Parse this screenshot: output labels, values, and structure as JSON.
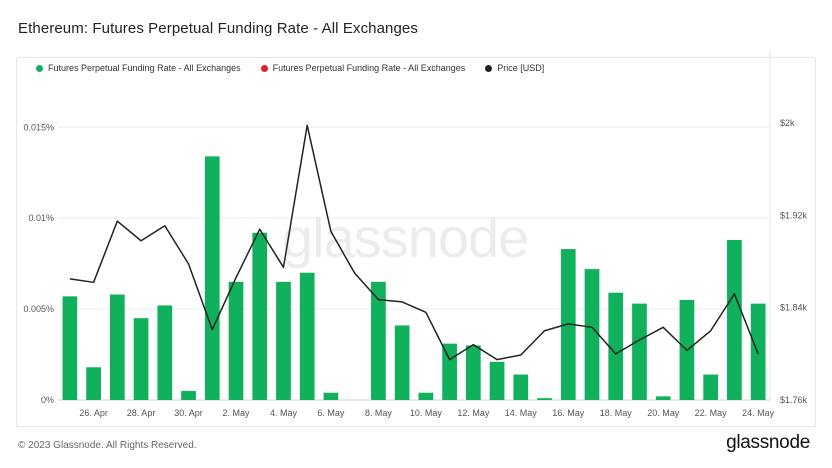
{
  "title": "Ethereum: Futures Perpetual Funding Rate - All Exchanges",
  "footer": {
    "copyright": "© 2023 Glassnode. All Rights Reserved.",
    "brand": "glassnode"
  },
  "watermark": "glassnode",
  "colors": {
    "bar_positive": "#10b05c",
    "bar_negative": "#e11d2b",
    "price_line": "#222222"
  },
  "chart_data": {
    "type": "bar",
    "legend": [
      {
        "label": "Futures Perpetual Funding Rate - All Exchanges",
        "color": "#10b05c"
      },
      {
        "label": "Futures Perpetual Funding Rate - All Exchanges",
        "color": "#e11d2b"
      },
      {
        "label": "Price [USD]",
        "color": "#222222"
      }
    ],
    "legend_position": "top-left",
    "grid": true,
    "x": [
      "2023-04-25",
      "2023-04-26",
      "2023-04-27",
      "2023-04-28",
      "2023-04-29",
      "2023-04-30",
      "2023-05-01",
      "2023-05-02",
      "2023-05-03",
      "2023-05-04",
      "2023-05-05",
      "2023-05-06",
      "2023-05-07",
      "2023-05-08",
      "2023-05-09",
      "2023-05-10",
      "2023-05-11",
      "2023-05-12",
      "2023-05-13",
      "2023-05-14",
      "2023-05-15",
      "2023-05-16",
      "2023-05-17",
      "2023-05-18",
      "2023-05-19",
      "2023-05-20",
      "2023-05-21",
      "2023-05-22",
      "2023-05-23",
      "2023-05-24"
    ],
    "x_tick_labels": [
      "26. Apr",
      "28. Apr",
      "30. Apr",
      "2. May",
      "4. May",
      "6. May",
      "8. May",
      "10. May",
      "12. May",
      "14. May",
      "16. May",
      "18. May",
      "20. May",
      "22. May",
      "24. May"
    ],
    "x_tick_index": [
      1,
      3,
      5,
      7,
      9,
      11,
      13,
      15,
      17,
      19,
      21,
      23,
      25,
      27,
      29
    ],
    "series": [
      {
        "axis": "left",
        "type": "bar",
        "values": [
          0.0057,
          0.0018,
          0.0058,
          0.0045,
          0.0052,
          0.0005,
          0.0134,
          0.0065,
          0.0092,
          0.0065,
          0.007,
          0.0004,
          0.0,
          0.0065,
          0.0041,
          0.0004,
          0.0031,
          0.003,
          0.0021,
          0.0014,
          0.0001,
          0.0083,
          0.0072,
          0.0059,
          0.0053,
          0.0002,
          0.0055,
          0.0014,
          0.0088,
          0.0053
        ]
      },
      {
        "axis": "right",
        "type": "line",
        "values": [
          1865,
          1862,
          1915,
          1898,
          1911,
          1878,
          1821,
          1866,
          1908,
          1875,
          1998,
          1906,
          1870,
          1847,
          1845,
          1836,
          1795,
          1808,
          1795,
          1799,
          1820,
          1826,
          1823,
          1800,
          1812,
          1823,
          1803,
          1820,
          1852,
          1800
        ]
      }
    ],
    "y_left": {
      "ylim": [
        0,
        0.0165
      ],
      "ticks": [
        0,
        0.005,
        0.01,
        0.015
      ],
      "tick_labels": [
        "0%",
        "0.005%",
        "0.01%",
        "0.015%"
      ]
    },
    "y_right": {
      "ylim": [
        1760,
        2020
      ],
      "ticks": [
        1760,
        1840,
        1920,
        2000
      ],
      "tick_labels": [
        "$1.76k",
        "$1.84k",
        "$1.92k",
        "$2k"
      ]
    }
  }
}
